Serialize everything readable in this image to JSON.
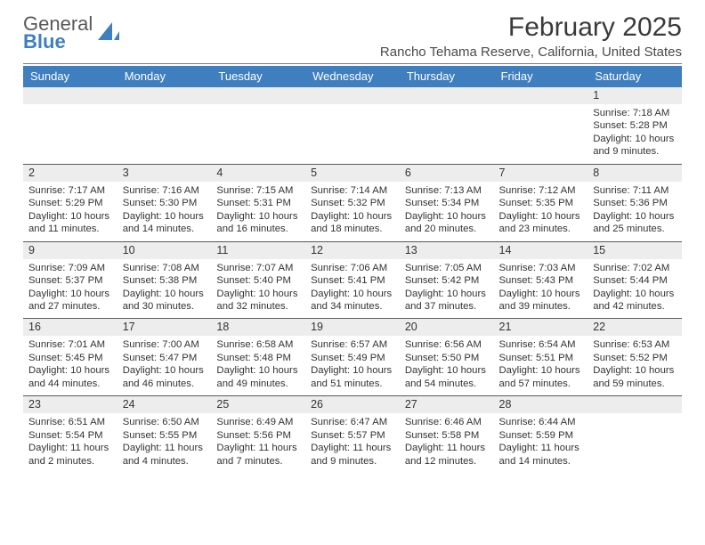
{
  "logo": {
    "line1": "General",
    "line2": "Blue"
  },
  "title": "February 2025",
  "subtitle": "Rancho Tehama Reserve, California, United States",
  "theme": {
    "header_bg": "#3f7fbf",
    "header_fg": "#ffffff",
    "daynum_bg": "#ededed",
    "rule_color": "#5a5a5a",
    "logo_gray": "#595959",
    "logo_blue": "#3f7fbf"
  },
  "dayHeaders": [
    "Sunday",
    "Monday",
    "Tuesday",
    "Wednesday",
    "Thursday",
    "Friday",
    "Saturday"
  ],
  "weeks": [
    [
      null,
      null,
      null,
      null,
      null,
      null,
      {
        "n": "1",
        "sunrise": "7:18 AM",
        "sunset": "5:28 PM",
        "daylight": "10 hours and 9 minutes."
      }
    ],
    [
      {
        "n": "2",
        "sunrise": "7:17 AM",
        "sunset": "5:29 PM",
        "daylight": "10 hours and 11 minutes."
      },
      {
        "n": "3",
        "sunrise": "7:16 AM",
        "sunset": "5:30 PM",
        "daylight": "10 hours and 14 minutes."
      },
      {
        "n": "4",
        "sunrise": "7:15 AM",
        "sunset": "5:31 PM",
        "daylight": "10 hours and 16 minutes."
      },
      {
        "n": "5",
        "sunrise": "7:14 AM",
        "sunset": "5:32 PM",
        "daylight": "10 hours and 18 minutes."
      },
      {
        "n": "6",
        "sunrise": "7:13 AM",
        "sunset": "5:34 PM",
        "daylight": "10 hours and 20 minutes."
      },
      {
        "n": "7",
        "sunrise": "7:12 AM",
        "sunset": "5:35 PM",
        "daylight": "10 hours and 23 minutes."
      },
      {
        "n": "8",
        "sunrise": "7:11 AM",
        "sunset": "5:36 PM",
        "daylight": "10 hours and 25 minutes."
      }
    ],
    [
      {
        "n": "9",
        "sunrise": "7:09 AM",
        "sunset": "5:37 PM",
        "daylight": "10 hours and 27 minutes."
      },
      {
        "n": "10",
        "sunrise": "7:08 AM",
        "sunset": "5:38 PM",
        "daylight": "10 hours and 30 minutes."
      },
      {
        "n": "11",
        "sunrise": "7:07 AM",
        "sunset": "5:40 PM",
        "daylight": "10 hours and 32 minutes."
      },
      {
        "n": "12",
        "sunrise": "7:06 AM",
        "sunset": "5:41 PM",
        "daylight": "10 hours and 34 minutes."
      },
      {
        "n": "13",
        "sunrise": "7:05 AM",
        "sunset": "5:42 PM",
        "daylight": "10 hours and 37 minutes."
      },
      {
        "n": "14",
        "sunrise": "7:03 AM",
        "sunset": "5:43 PM",
        "daylight": "10 hours and 39 minutes."
      },
      {
        "n": "15",
        "sunrise": "7:02 AM",
        "sunset": "5:44 PM",
        "daylight": "10 hours and 42 minutes."
      }
    ],
    [
      {
        "n": "16",
        "sunrise": "7:01 AM",
        "sunset": "5:45 PM",
        "daylight": "10 hours and 44 minutes."
      },
      {
        "n": "17",
        "sunrise": "7:00 AM",
        "sunset": "5:47 PM",
        "daylight": "10 hours and 46 minutes."
      },
      {
        "n": "18",
        "sunrise": "6:58 AM",
        "sunset": "5:48 PM",
        "daylight": "10 hours and 49 minutes."
      },
      {
        "n": "19",
        "sunrise": "6:57 AM",
        "sunset": "5:49 PM",
        "daylight": "10 hours and 51 minutes."
      },
      {
        "n": "20",
        "sunrise": "6:56 AM",
        "sunset": "5:50 PM",
        "daylight": "10 hours and 54 minutes."
      },
      {
        "n": "21",
        "sunrise": "6:54 AM",
        "sunset": "5:51 PM",
        "daylight": "10 hours and 57 minutes."
      },
      {
        "n": "22",
        "sunrise": "6:53 AM",
        "sunset": "5:52 PM",
        "daylight": "10 hours and 59 minutes."
      }
    ],
    [
      {
        "n": "23",
        "sunrise": "6:51 AM",
        "sunset": "5:54 PM",
        "daylight": "11 hours and 2 minutes."
      },
      {
        "n": "24",
        "sunrise": "6:50 AM",
        "sunset": "5:55 PM",
        "daylight": "11 hours and 4 minutes."
      },
      {
        "n": "25",
        "sunrise": "6:49 AM",
        "sunset": "5:56 PM",
        "daylight": "11 hours and 7 minutes."
      },
      {
        "n": "26",
        "sunrise": "6:47 AM",
        "sunset": "5:57 PM",
        "daylight": "11 hours and 9 minutes."
      },
      {
        "n": "27",
        "sunrise": "6:46 AM",
        "sunset": "5:58 PM",
        "daylight": "11 hours and 12 minutes."
      },
      {
        "n": "28",
        "sunrise": "6:44 AM",
        "sunset": "5:59 PM",
        "daylight": "11 hours and 14 minutes."
      },
      null
    ]
  ],
  "labels": {
    "sunrise": "Sunrise: ",
    "sunset": "Sunset: ",
    "daylight": "Daylight: "
  }
}
